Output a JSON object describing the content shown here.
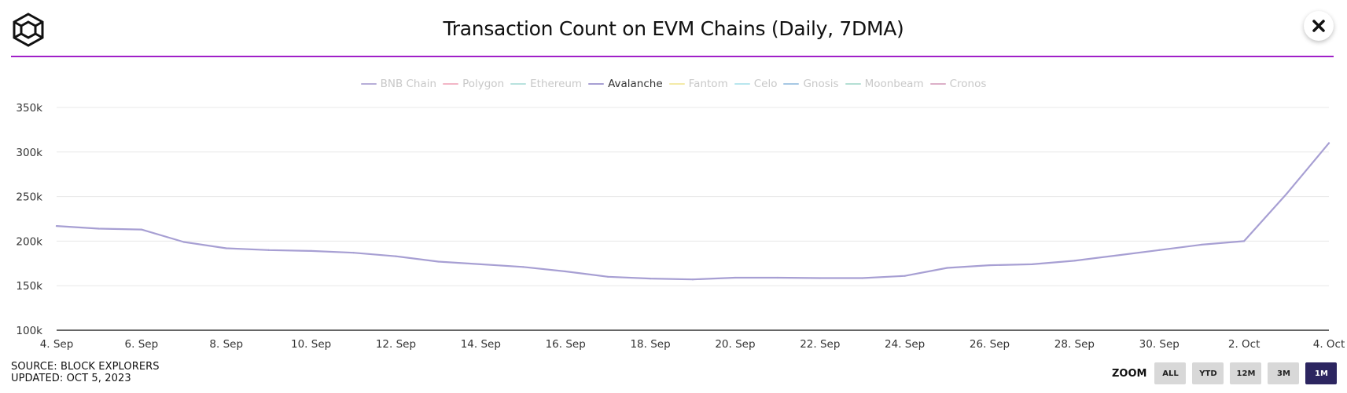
{
  "header": {
    "title": "Transaction Count on EVM Chains (Daily, 7DMA)",
    "logo_icon": "cube-logo-icon",
    "close_icon": "close-icon",
    "accent_color": "#a020c8"
  },
  "legend": [
    {
      "name": "BNB Chain",
      "color": "#b7aed8",
      "active": false
    },
    {
      "name": "Polygon",
      "color": "#f2b6c6",
      "active": false
    },
    {
      "name": "Ethereum",
      "color": "#b8e2de",
      "active": false
    },
    {
      "name": "Avalanche",
      "color": "#a79fd3",
      "active": true
    },
    {
      "name": "Fantom",
      "color": "#f3eaa8",
      "active": false
    },
    {
      "name": "Celo",
      "color": "#b8e6ee",
      "active": false
    },
    {
      "name": "Gnosis",
      "color": "#a6c8e4",
      "active": false
    },
    {
      "name": "Moonbeam",
      "color": "#b4dfd4",
      "active": false
    },
    {
      "name": "Cronos",
      "color": "#dcb0c8",
      "active": false
    }
  ],
  "footer": {
    "source": "SOURCE: BLOCK EXPLORERS",
    "updated": "UPDATED: OCT 5, 2023"
  },
  "zoom": {
    "label": "ZOOM",
    "buttons": [
      {
        "label": "ALL",
        "active": false
      },
      {
        "label": "YTD",
        "active": false
      },
      {
        "label": "12M",
        "active": false
      },
      {
        "label": "3M",
        "active": false
      },
      {
        "label": "1M",
        "active": true
      }
    ]
  },
  "chart_data": {
    "type": "line",
    "title": "Transaction Count on EVM Chains (Daily, 7DMA)",
    "xlabel": "",
    "ylabel": "",
    "ylim": [
      100000,
      350000
    ],
    "yticks": [
      100000,
      150000,
      200000,
      250000,
      300000,
      350000
    ],
    "ytick_labels": [
      "100k",
      "150k",
      "200k",
      "250k",
      "300k",
      "350k"
    ],
    "xticks": [
      "4. Sep",
      "6. Sep",
      "8. Sep",
      "10. Sep",
      "12. Sep",
      "14. Sep",
      "16. Sep",
      "18. Sep",
      "20. Sep",
      "22. Sep",
      "24. Sep",
      "26. Sep",
      "28. Sep",
      "30. Sep",
      "2. Oct",
      "4. Oct"
    ],
    "grid": true,
    "legend_position": "top-center",
    "x": [
      "4. Sep",
      "5. Sep",
      "6. Sep",
      "7. Sep",
      "8. Sep",
      "9. Sep",
      "10. Sep",
      "11. Sep",
      "12. Sep",
      "13. Sep",
      "14. Sep",
      "15. Sep",
      "16. Sep",
      "17. Sep",
      "18. Sep",
      "19. Sep",
      "20. Sep",
      "21. Sep",
      "22. Sep",
      "23. Sep",
      "24. Sep",
      "25. Sep",
      "26. Sep",
      "27. Sep",
      "28. Sep",
      "29. Sep",
      "30. Sep",
      "1. Oct",
      "2. Oct",
      "3. Oct",
      "4. Oct"
    ],
    "series": [
      {
        "name": "Avalanche",
        "color": "#a79fd3",
        "values": [
          217000,
          214000,
          213000,
          199000,
          192000,
          190000,
          189000,
          187000,
          183000,
          177000,
          174000,
          171000,
          166000,
          160000,
          158000,
          157000,
          159000,
          159000,
          158500,
          158500,
          161000,
          170000,
          173000,
          174000,
          178000,
          184000,
          190000,
          196000,
          200000,
          253000,
          310000
        ]
      }
    ]
  }
}
